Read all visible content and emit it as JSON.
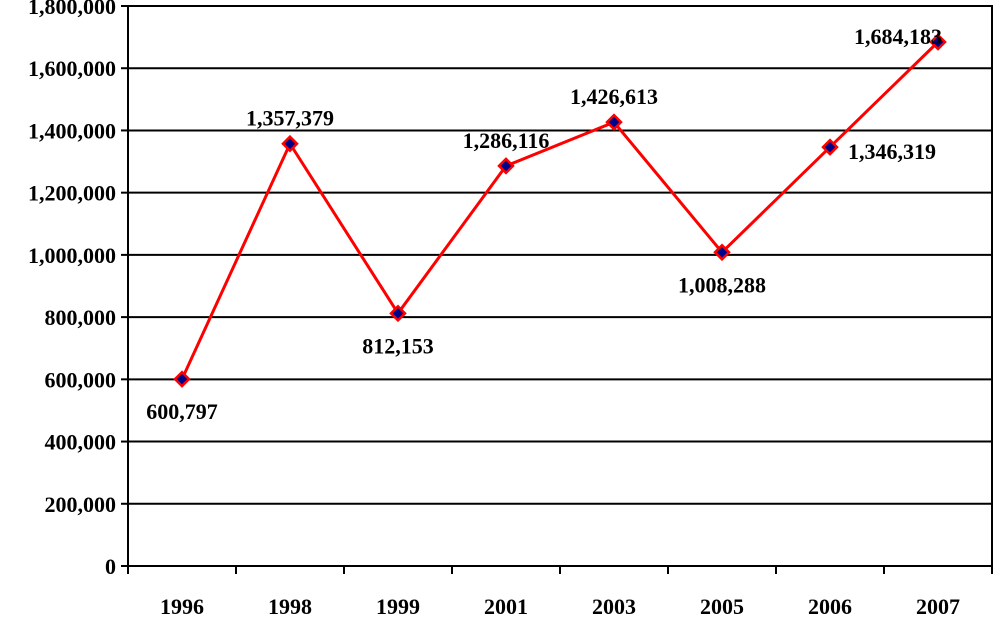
{
  "chart_data": {
    "type": "line",
    "title": "",
    "xlabel": "",
    "ylabel": "",
    "categories": [
      "1996",
      "1998",
      "1999",
      "2001",
      "2003",
      "2005",
      "2006",
      "2007"
    ],
    "series": [
      {
        "values": [
          600797,
          1357379,
          812153,
          1286116,
          1426613,
          1008288,
          1346319,
          1684183
        ]
      }
    ],
    "data_labels": [
      "600,797",
      "1,357,379",
      "812,153",
      "1,286,116",
      "1,426,613",
      "1,008,288",
      "1,346,319",
      "1,684,183"
    ],
    "ylim": [
      0,
      1800000
    ],
    "y_ticks": [
      0,
      200000,
      400000,
      600000,
      800000,
      1000000,
      1200000,
      1400000,
      1600000,
      1800000
    ],
    "y_tick_labels": [
      "0",
      "200,000",
      "400,000",
      "600,000",
      "800,000",
      "1,000,000",
      "1,200,000",
      "1,400,000",
      "1,600,000",
      "1,800,000"
    ],
    "grid": true,
    "legend": "none",
    "colors": {
      "line": "#ff0000",
      "marker_fill": "#00008b",
      "marker_edge": "#ff0000",
      "grid": "#000000"
    }
  }
}
